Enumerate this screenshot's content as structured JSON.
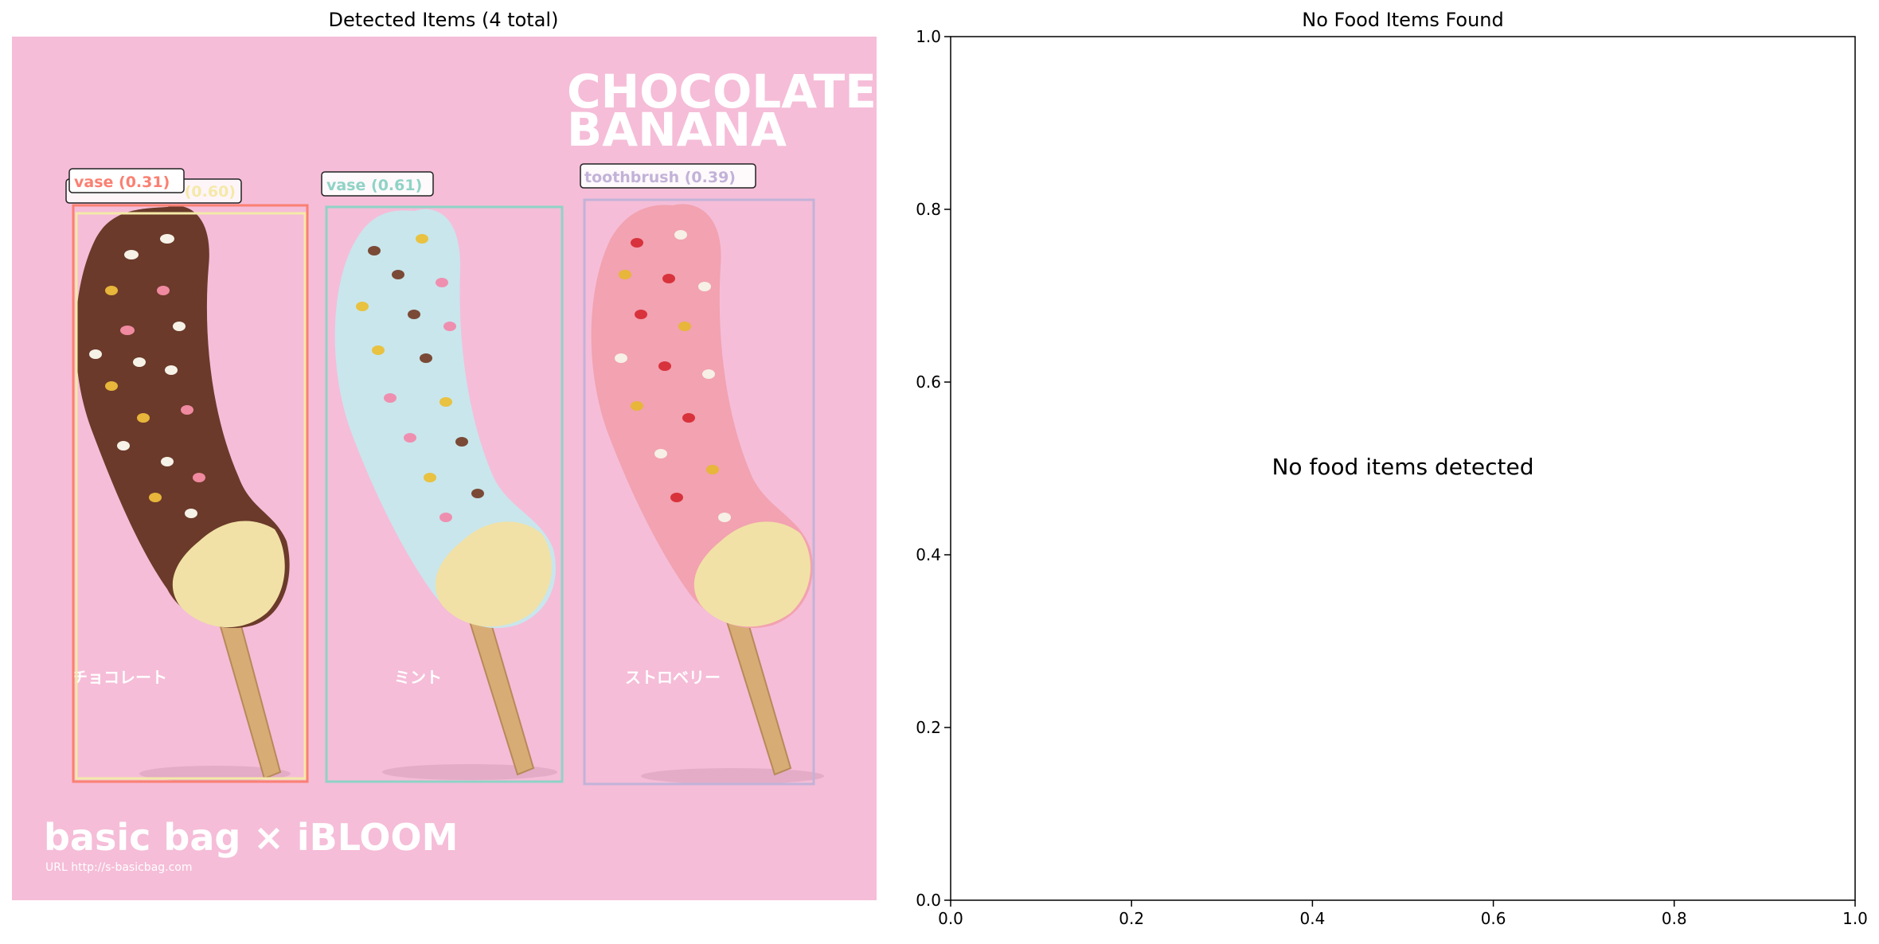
{
  "left_panel": {
    "title": "Detected Items (4 total)",
    "image": {
      "background_color": "#f5bdd8",
      "heading_line1": "CHOCOLATE",
      "heading_line2": "BANANA",
      "flavor_labels": [
        "チョコレート",
        "ミント",
        "ストロベリー"
      ],
      "brand_logo": "basic bag × iBLOOM",
      "brand_url": "URL http://s-basicbag.com",
      "popsicles": [
        {
          "coating_color": "#6b3a2a",
          "sprinkle_colors": [
            "#f6f2e8",
            "#e7b63a",
            "#f08aa0"
          ]
        },
        {
          "coating_color": "#c9e6ec",
          "sprinkle_colors": [
            "#7a4a36",
            "#e8c240",
            "#ef8fb0"
          ]
        },
        {
          "coating_color": "#f2a2b0",
          "sprinkle_colors": [
            "#d8323c",
            "#f6f0e6",
            "#e7b63a"
          ]
        }
      ]
    },
    "detections": [
      {
        "label": "vase (0.31)",
        "color": "#fa8072"
      },
      {
        "label": "(0.60)",
        "color": "#f4e9a8"
      },
      {
        "label": "vase (0.61)",
        "color": "#8fd3c6"
      },
      {
        "label": "toothbrush (0.39)",
        "color": "#c2b2d8"
      }
    ]
  },
  "right_panel": {
    "title": "No Food Items Found",
    "message": "No food items detected"
  },
  "chart_data": [
    {
      "type": "table",
      "title": "Detected Items (4 total)",
      "detections": [
        {
          "label": "vase",
          "score": 0.31
        },
        {
          "label": "",
          "score": 0.6
        },
        {
          "label": "vase",
          "score": 0.61
        },
        {
          "label": "toothbrush",
          "score": 0.39
        }
      ]
    },
    {
      "type": "scatter",
      "title": "No Food Items Found",
      "xlim": [
        0.0,
        1.0
      ],
      "ylim": [
        0.0,
        1.0
      ],
      "x_ticks": [
        "0.0",
        "0.2",
        "0.4",
        "0.6",
        "0.8",
        "1.0"
      ],
      "y_ticks": [
        "0.0",
        "0.2",
        "0.4",
        "0.6",
        "0.8",
        "1.0"
      ],
      "series": [],
      "annotation": "No food items detected",
      "grid": false
    }
  ]
}
